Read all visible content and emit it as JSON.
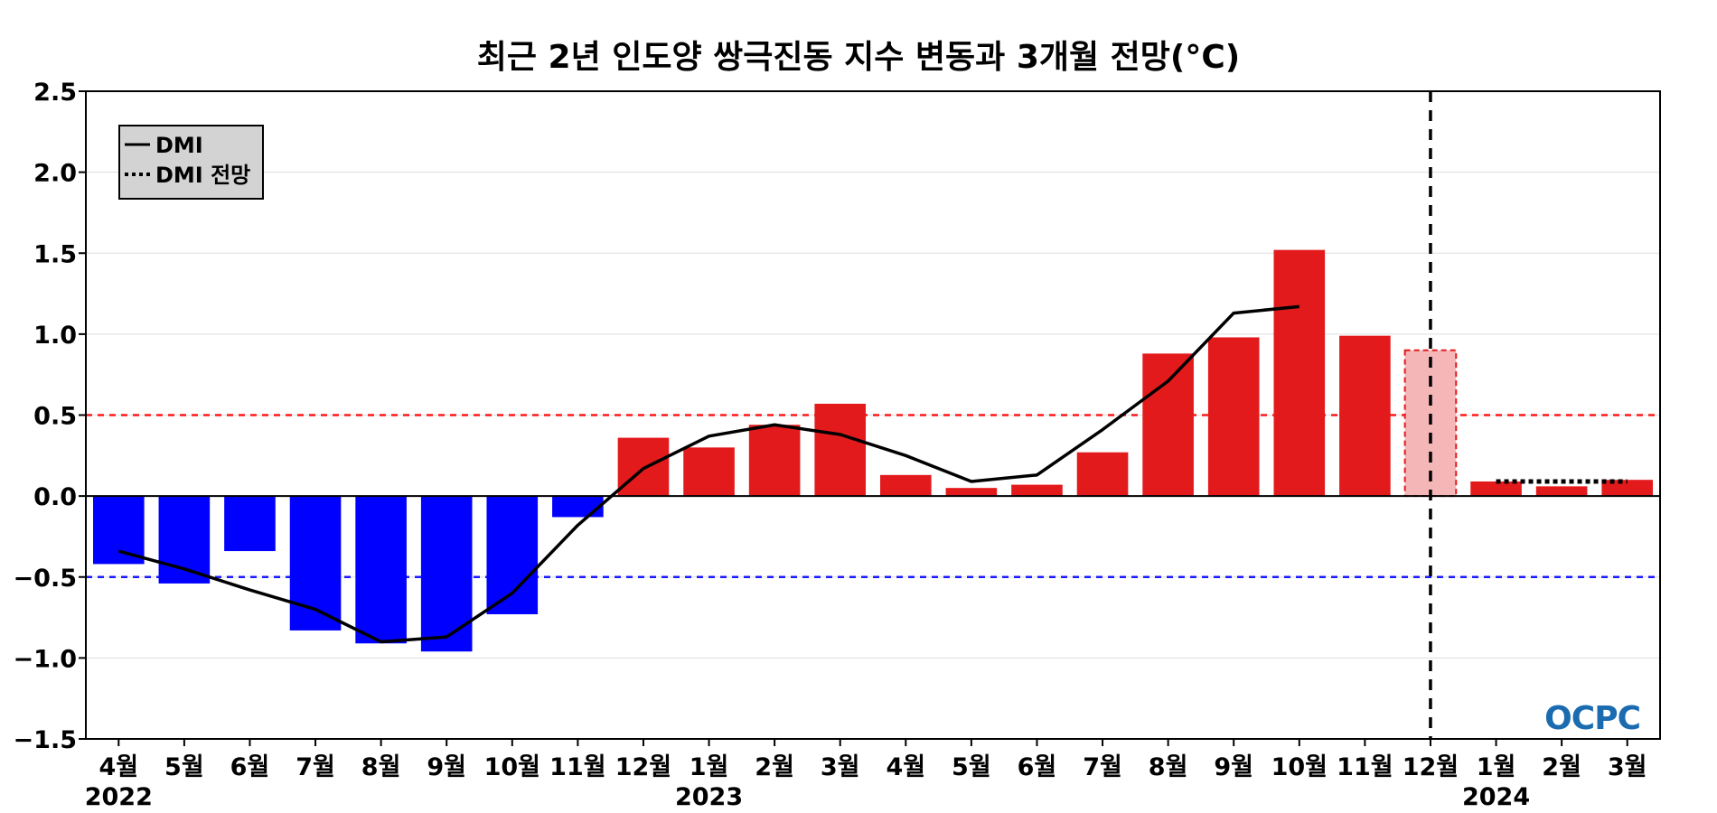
{
  "chart_data": {
    "type": "bar",
    "title": "최근 2년 인도양 쌍극진동 지수 변동과 3개월 전망(°C)",
    "xlabel": "",
    "ylabel": "",
    "ylim": [
      -1.5,
      2.5
    ],
    "yticks": [
      "2.5",
      "2.0",
      "1.5",
      "1.0",
      "0.5",
      "0.0",
      "−0.5",
      "−1.0",
      "−1.5"
    ],
    "ytick_values": [
      2.5,
      2.0,
      1.5,
      1.0,
      0.5,
      0.0,
      -0.5,
      -1.0,
      -1.5
    ],
    "categories": [
      "4월",
      "5월",
      "6월",
      "7월",
      "8월",
      "9월",
      "10월",
      "11월",
      "12월",
      "1월",
      "2월",
      "3월",
      "4월",
      "5월",
      "6월",
      "7월",
      "8월",
      "9월",
      "10월",
      "11월",
      "12월",
      "1월",
      "2월",
      "3월"
    ],
    "year_labels": [
      {
        "label": "2022",
        "index": 0
      },
      {
        "label": "2023",
        "index": 9
      },
      {
        "label": "2024",
        "index": 21
      }
    ],
    "bar_values": [
      -0.42,
      -0.54,
      -0.34,
      -0.83,
      -0.91,
      -0.96,
      -0.73,
      -0.13,
      0.36,
      0.3,
      0.44,
      0.57,
      0.13,
      0.05,
      0.07,
      0.27,
      0.88,
      0.98,
      1.52,
      0.99,
      0.9,
      0.09,
      0.06,
      0.1
    ],
    "bar_kind": [
      "obs",
      "obs",
      "obs",
      "obs",
      "obs",
      "obs",
      "obs",
      "obs",
      "obs",
      "obs",
      "obs",
      "obs",
      "obs",
      "obs",
      "obs",
      "obs",
      "obs",
      "obs",
      "obs",
      "obs",
      "forecast",
      "obs",
      "obs",
      "obs"
    ],
    "series": [
      {
        "name": "DMI",
        "style": "solid",
        "values": [
          -0.34,
          -0.45,
          -0.58,
          -0.7,
          -0.9,
          -0.87,
          -0.6,
          -0.18,
          0.17,
          0.37,
          0.44,
          0.38,
          0.25,
          0.09,
          0.13,
          0.41,
          0.71,
          1.13,
          1.17,
          null,
          null,
          null,
          null,
          null
        ]
      },
      {
        "name": "DMI 전망",
        "style": "dotted",
        "values": [
          null,
          null,
          null,
          null,
          null,
          null,
          null,
          null,
          null,
          null,
          null,
          null,
          null,
          null,
          null,
          null,
          null,
          null,
          null,
          null,
          null,
          0.09,
          0.09,
          0.09
        ]
      }
    ],
    "thresholds": [
      {
        "value": 0.5,
        "color": "#ff1a1a"
      },
      {
        "value": -0.5,
        "color": "#1a1aff"
      }
    ],
    "forecast_divider_index": 20,
    "legend_placement": "top-left",
    "grid": true,
    "colors": {
      "positive": "#e31a1c",
      "negative": "#0000ff",
      "forecast_fill": "#f4b6b6",
      "forecast_border": "#e31a1c",
      "line": "#000000",
      "grid": "#dddddd"
    }
  },
  "legend": {
    "items": [
      {
        "label": "DMI",
        "style": "solid"
      },
      {
        "label": "DMI 전망",
        "style": "dotted"
      }
    ]
  },
  "logo": {
    "text": "OCPC"
  }
}
